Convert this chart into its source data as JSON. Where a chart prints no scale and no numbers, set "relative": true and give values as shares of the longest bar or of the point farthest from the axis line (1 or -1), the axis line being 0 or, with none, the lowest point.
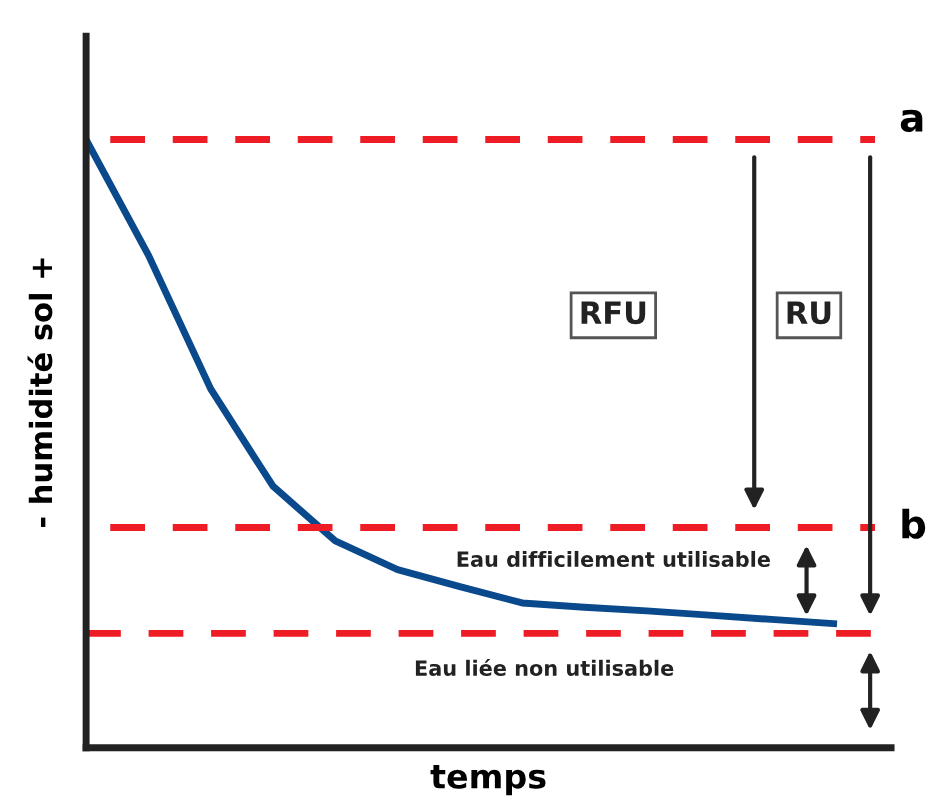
{
  "chart_data": {
    "type": "line",
    "relative": true,
    "xlabel": "temps",
    "ylabel": "- humidité sol +",
    "categories": [
      null,
      null,
      null,
      null,
      null,
      null,
      null,
      null,
      null,
      null,
      null,
      null,
      null
    ],
    "series": [
      {
        "color": "#0a4a8c",
        "values": [
          1.0,
          0.81,
          0.59,
          0.43,
          0.34,
          0.293,
          0.265,
          0.238,
          0.231,
          0.225,
          0.218,
          0.211,
          0.204
        ]
      }
    ],
    "ref_lines": [
      {
        "axis": "y",
        "value": 1.0,
        "label": "a",
        "color": "#ee1c25",
        "line_style": "dashed"
      },
      {
        "axis": "y",
        "value": 0.362,
        "label": "b",
        "color": "#ee1c25",
        "line_style": "dashed"
      },
      {
        "axis": "y",
        "value": 0.188,
        "label": null,
        "color": "#ee1c25",
        "line_style": "dashed"
      }
    ],
    "annotations": [
      "RFU",
      "RU",
      "Eau difficilement utilisable",
      "Eau liée non utilisable"
    ],
    "marker": "none",
    "line_style": "solid"
  }
}
